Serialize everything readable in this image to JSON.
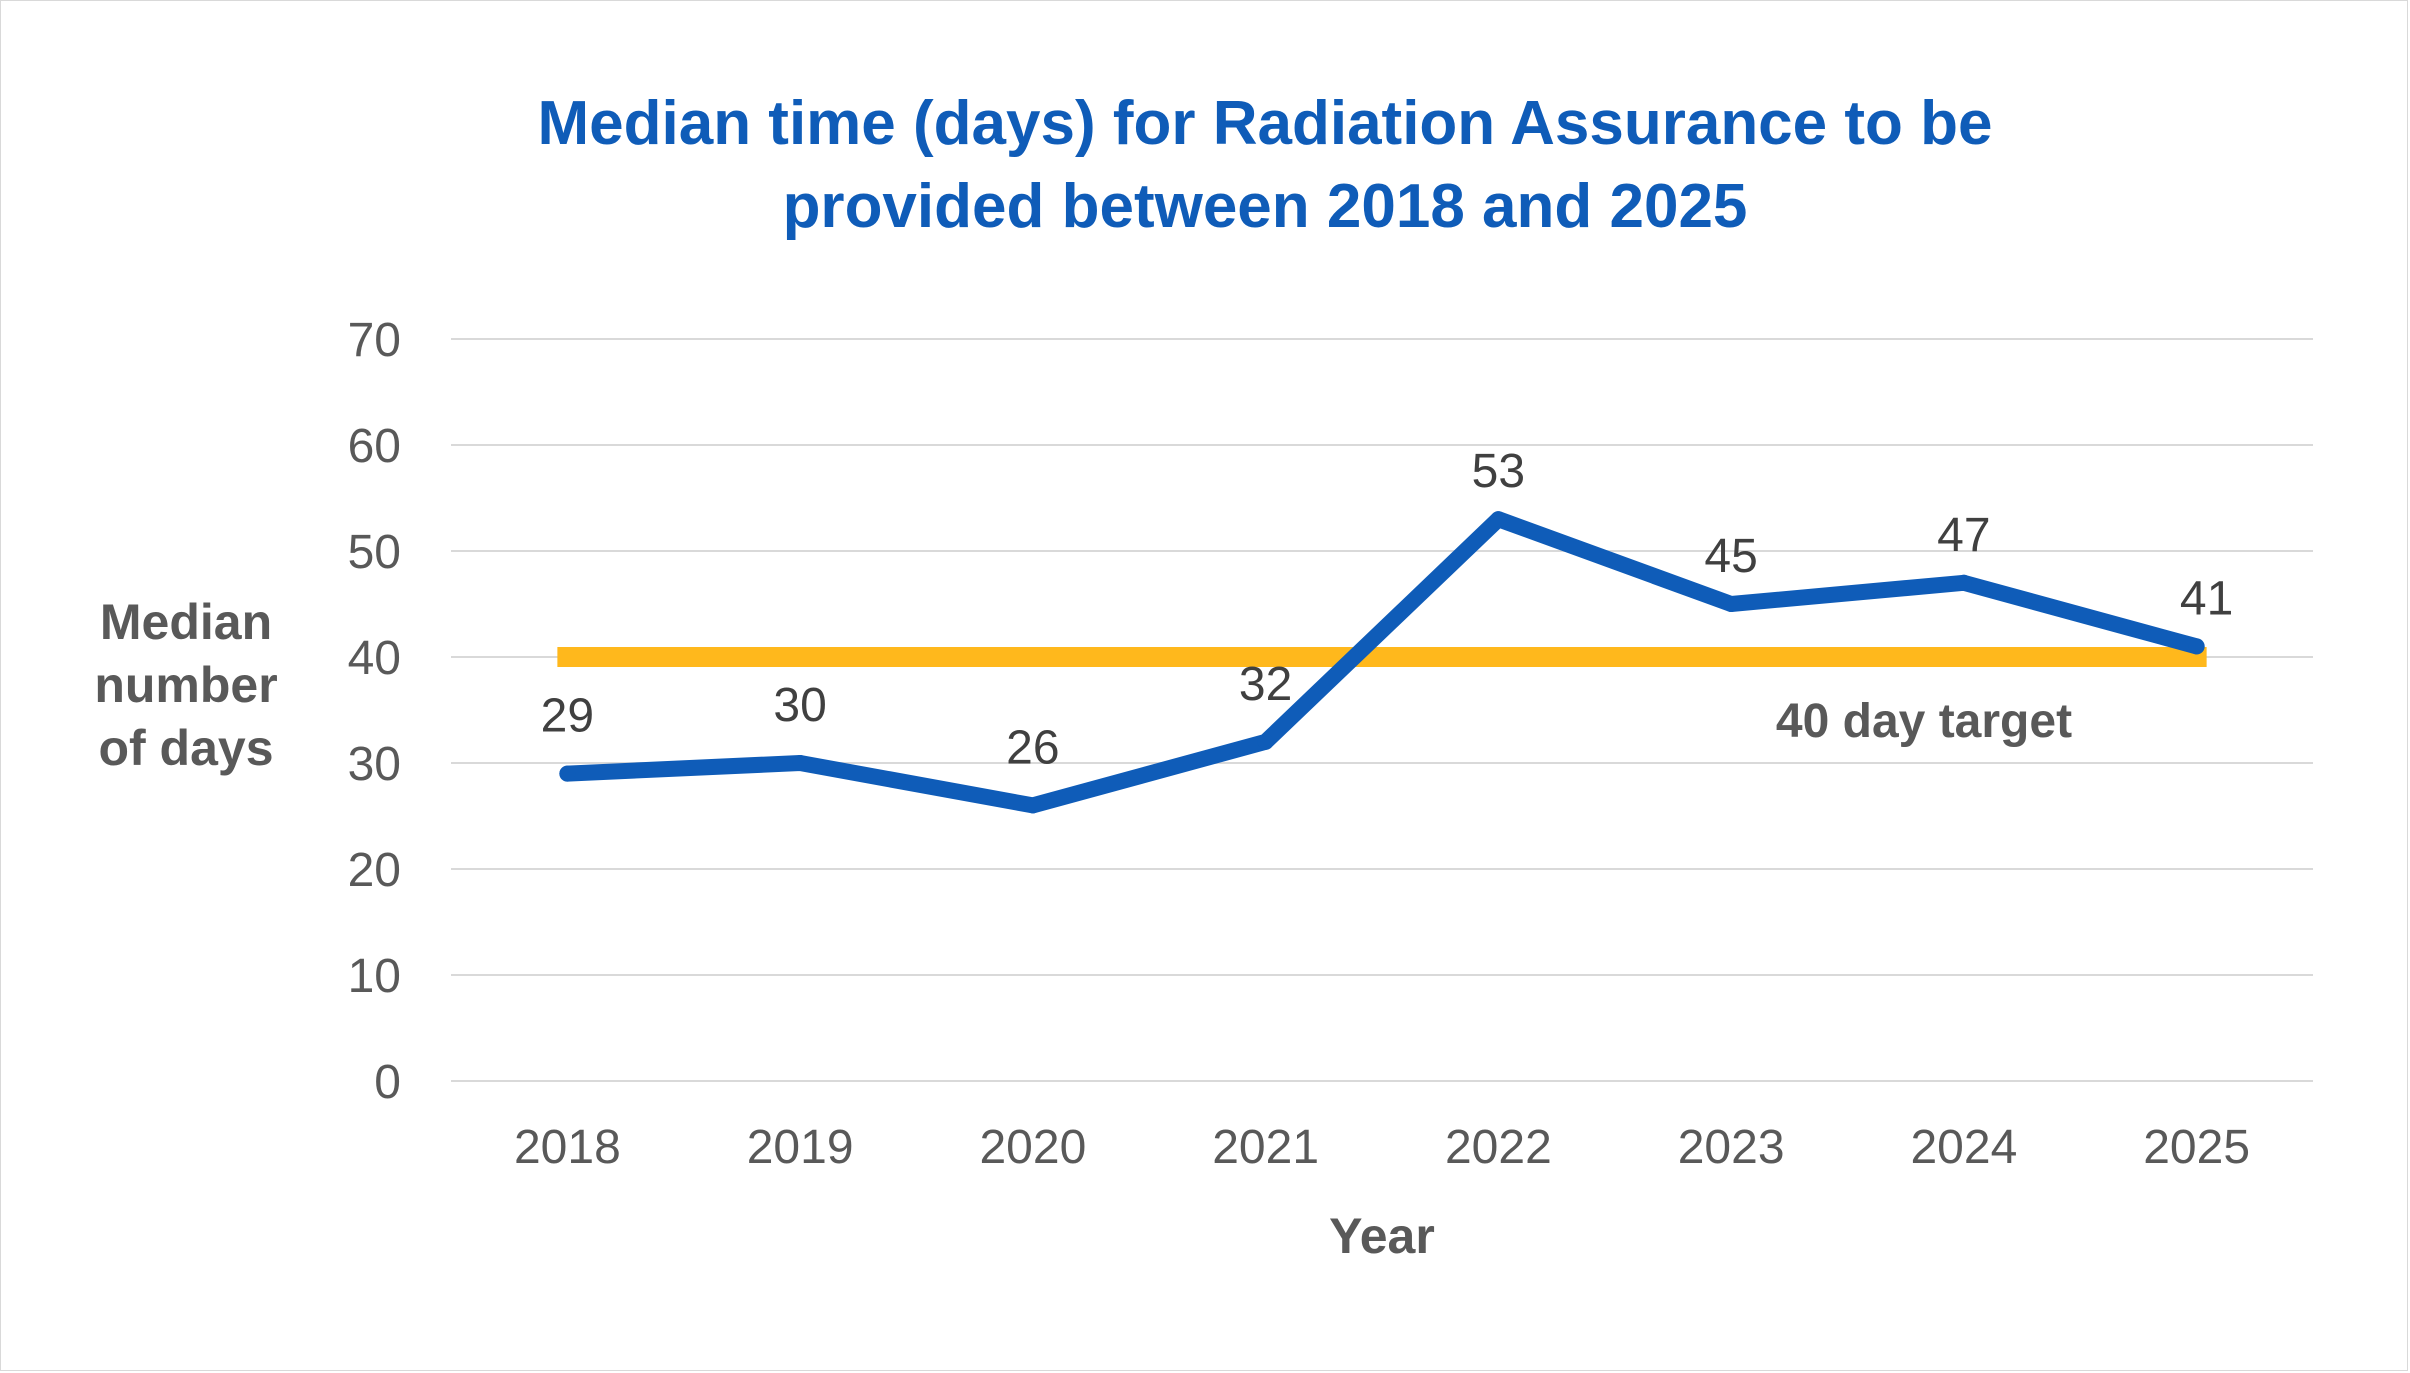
{
  "chart_data": {
    "type": "line",
    "title_lines": [
      "Median time (days) for Radiation Assurance to be",
      "provided between 2018 and 2025"
    ],
    "xlabel": "Year",
    "ylabel_lines": [
      "Median",
      "number",
      "of days"
    ],
    "categories": [
      "2018",
      "2019",
      "2020",
      "2021",
      "2022",
      "2023",
      "2024",
      "2025"
    ],
    "ylim": [
      0,
      70
    ],
    "yticks": [
      0,
      10,
      20,
      30,
      40,
      50,
      60,
      70
    ],
    "ytick_labels": [
      "0",
      "10",
      "20",
      "30",
      "40",
      "50",
      "60",
      "70"
    ],
    "grid": true,
    "legend": "none",
    "series": [
      {
        "values": [
          29,
          30,
          26,
          32,
          53,
          45,
          47,
          41
        ],
        "data_labels": [
          "29",
          "30",
          "26",
          "32",
          "53",
          "45",
          "47",
          "41"
        ],
        "color": "#0F5CB8"
      },
      {
        "values": [
          40,
          40,
          40,
          40,
          40,
          40,
          40,
          40
        ],
        "color": "#FFB81C"
      }
    ],
    "annotation": {
      "text": "40 day target"
    },
    "colors": {
      "title": "#0F5CB8",
      "gridline": "#D9D9D9",
      "tick_text": "#595959",
      "data_label": "#404040"
    }
  }
}
